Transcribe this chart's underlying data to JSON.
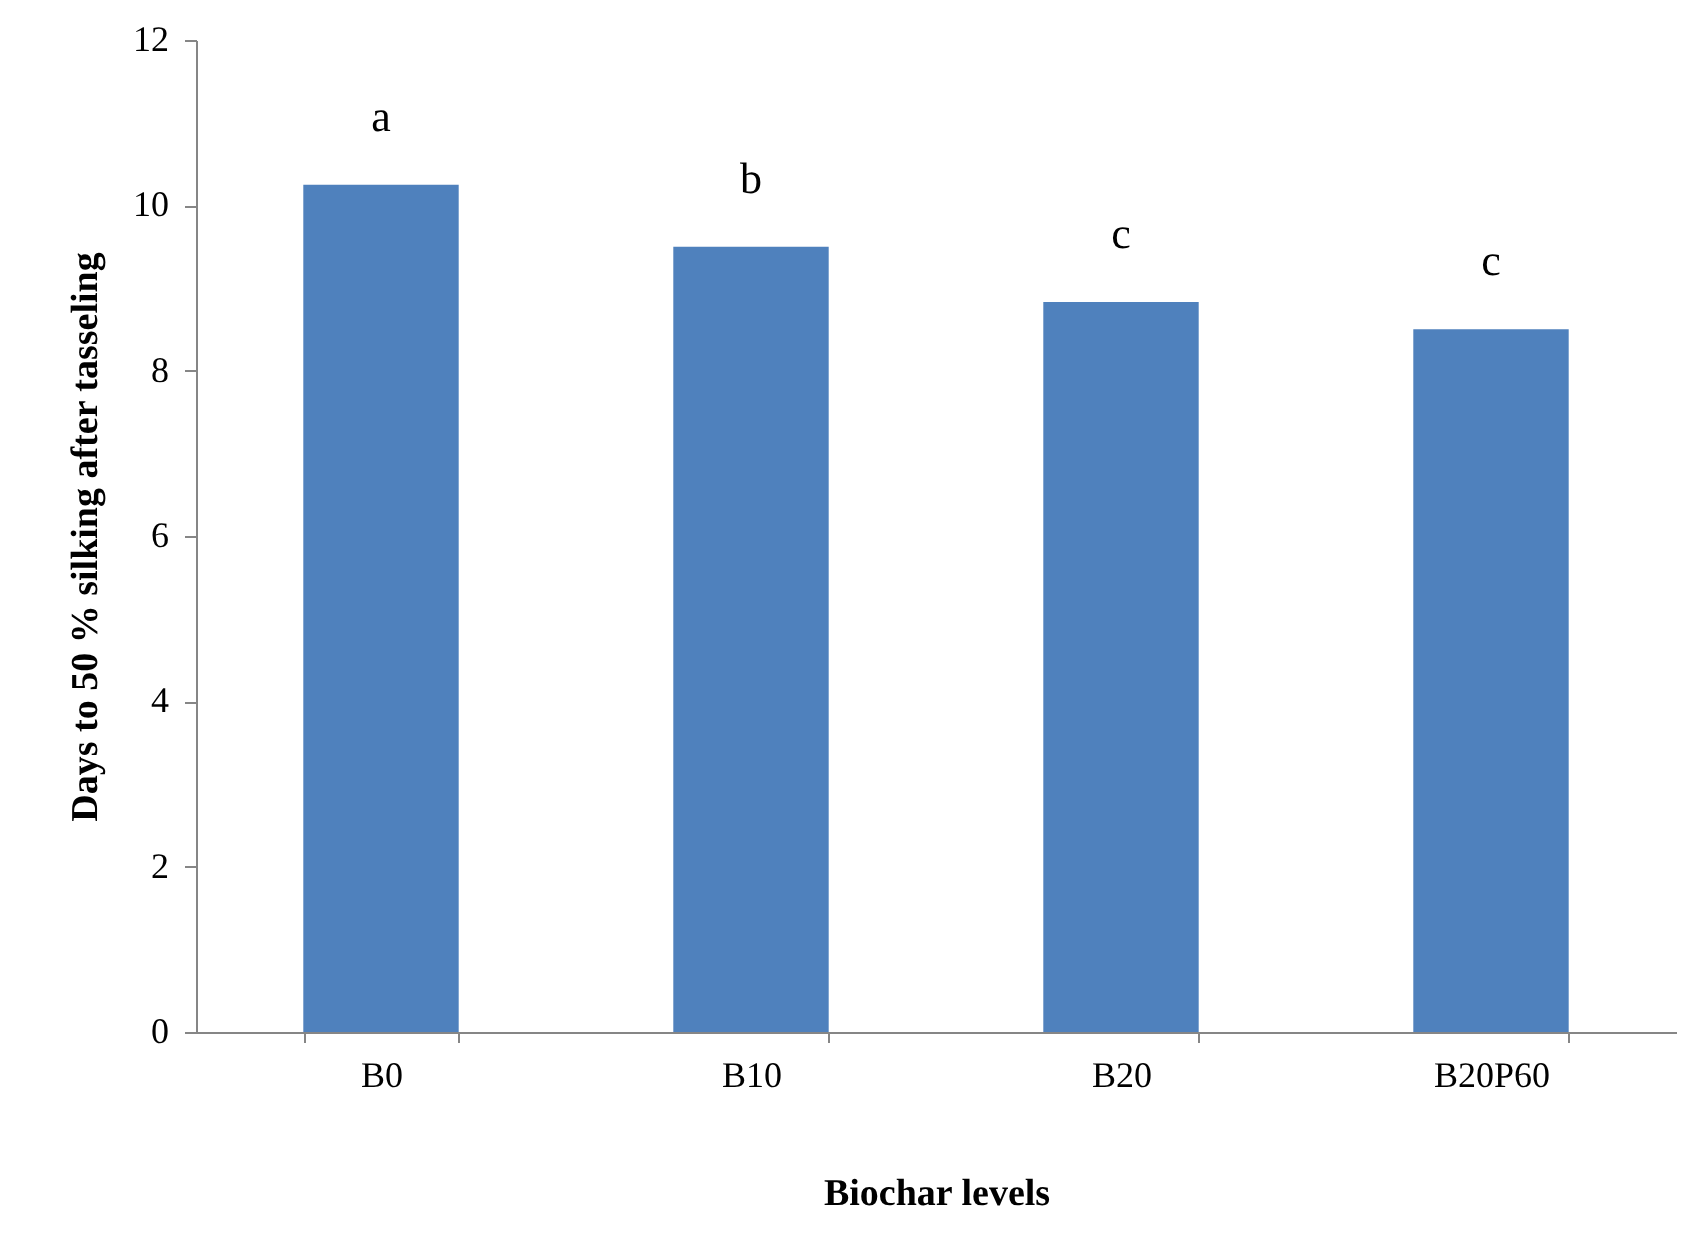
{
  "chart_data": {
    "type": "bar",
    "xlabel": "Biochar levels",
    "ylabel": "Days  to  50 % silking after tasseling",
    "categories": [
      "B0",
      "B10",
      "B20",
      "B20P60"
    ],
    "values": [
      10.25,
      9.5,
      8.83,
      8.5
    ],
    "color": "#4f81bd",
    "ylim": [
      0,
      12
    ],
    "yticks": [
      0,
      2,
      4,
      6,
      8,
      10,
      12
    ],
    "grid": false,
    "annotations": [
      {
        "text": "a",
        "x": "B0",
        "y": 10.25
      },
      {
        "text": "b",
        "x": "B10",
        "y": 9.5
      },
      {
        "text": "c",
        "x": "B20",
        "y": 8.83
      },
      {
        "text": "c",
        "x": "B20P60",
        "y": 8.5
      }
    ]
  }
}
